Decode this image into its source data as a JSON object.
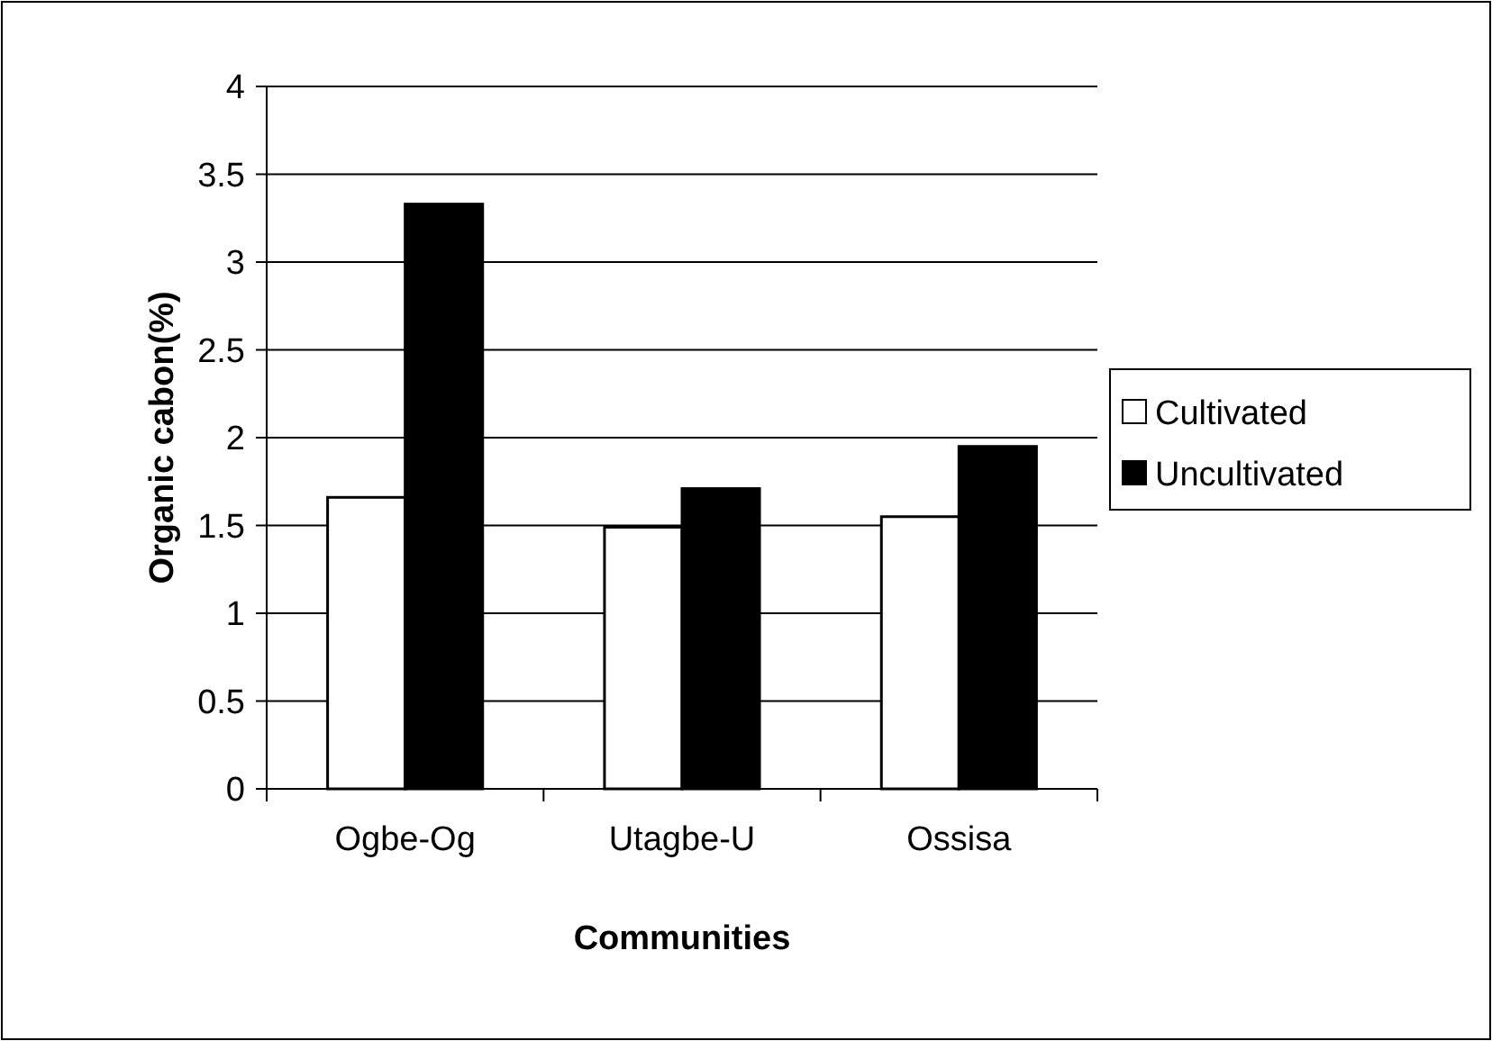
{
  "chart_data": {
    "type": "bar",
    "xlabel": "Communities",
    "ylabel": "Organic cabon(%)",
    "categories": [
      "Ogbe-Og",
      "Utagbe-U",
      "Ossisa"
    ],
    "series": [
      {
        "name": "Cultivated",
        "color": "#ffffff",
        "values": [
          1.66,
          1.49,
          1.55
        ]
      },
      {
        "name": "Uncultivated",
        "color": "#000000",
        "values": [
          3.33,
          1.71,
          1.95
        ]
      }
    ],
    "ylim": [
      0,
      4
    ],
    "yticks": [
      0,
      {
        "value": 0.5,
        "label": "0.5"
      },
      1,
      {
        "value": 1.5,
        "label": "1.5"
      },
      2,
      {
        "value": 2.5,
        "label": "2.5"
      },
      3,
      {
        "value": 3.5,
        "label": "3.5"
      },
      4
    ],
    "grid": "y",
    "legend": "right"
  }
}
